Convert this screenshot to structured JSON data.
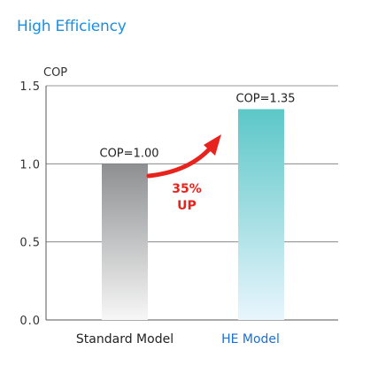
{
  "page": {
    "title": "High Efficiency",
    "title_color": "#1a8fe0"
  },
  "chart_data": {
    "type": "bar",
    "title": "",
    "ylabel": "COP",
    "xlabel": "",
    "categories": [
      "Standard Model",
      "HE Model"
    ],
    "values": [
      1.0,
      1.35
    ],
    "bar_labels": [
      "COP=1.00",
      "COP=1.35"
    ],
    "category_label_colors": [
      "#222222",
      "#1a6fd0"
    ],
    "ylim": [
      0,
      1.5
    ],
    "yticks": [
      0.0,
      0.5,
      1.0,
      1.5
    ],
    "ytick_labels": [
      "0.0",
      "0.5",
      "1.0",
      "1.5"
    ],
    "grid": true,
    "bar_gradients": [
      {
        "top": "#8e8f91",
        "bottom": "#f7f7f7"
      },
      {
        "top": "#5cc7c8",
        "bottom": "#e8f5fd"
      }
    ],
    "annotation": {
      "lines": [
        "35%",
        "UP"
      ],
      "color": "#e8231e",
      "arrow_color": "#e8231e"
    }
  }
}
